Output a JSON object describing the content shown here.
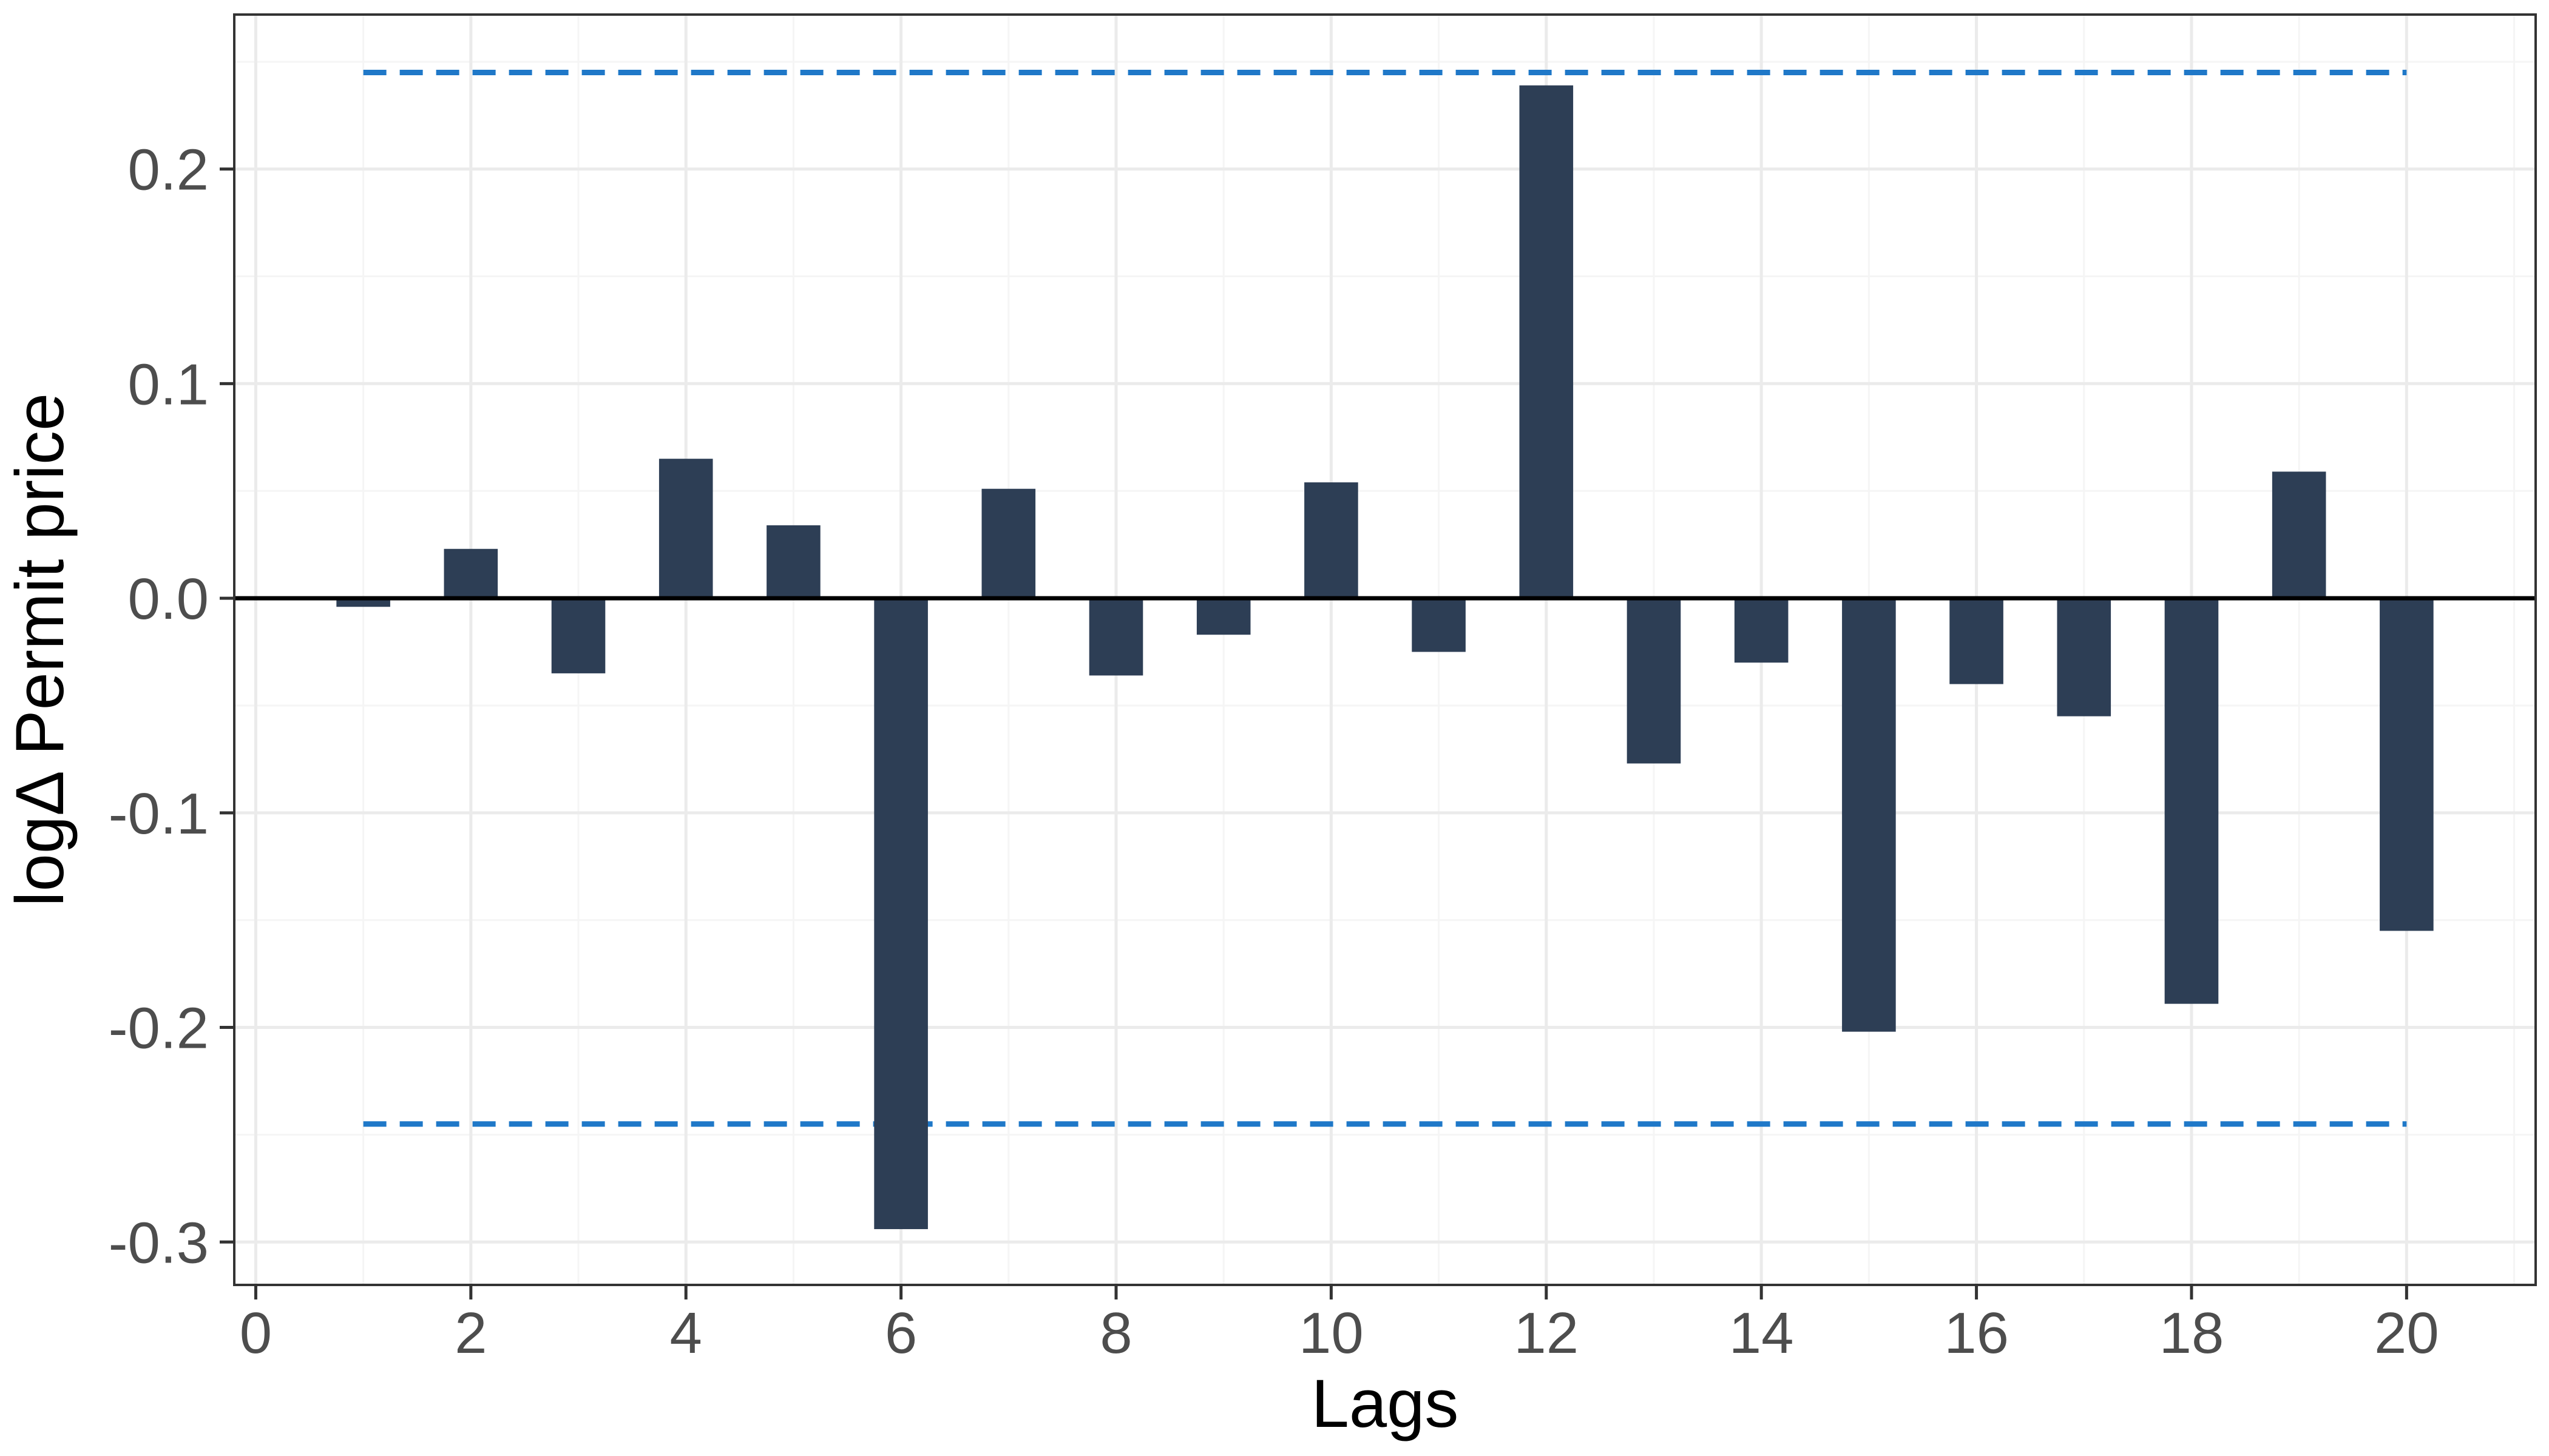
{
  "chart_data": {
    "type": "bar",
    "xlabel": "Lags",
    "ylabel": "logΔ Permit price",
    "x": [
      1,
      2,
      3,
      4,
      5,
      6,
      7,
      8,
      9,
      10,
      11,
      12,
      13,
      14,
      15,
      16,
      17,
      18,
      19,
      20
    ],
    "values": [
      -0.004,
      0.023,
      -0.035,
      0.065,
      0.034,
      -0.294,
      0.051,
      -0.036,
      -0.017,
      0.054,
      -0.025,
      0.239,
      -0.077,
      -0.03,
      -0.202,
      -0.04,
      -0.055,
      -0.189,
      0.059,
      -0.155
    ],
    "xlim": [
      -0.2,
      21.2
    ],
    "ylim": [
      -0.32,
      0.272
    ],
    "xticks": [
      0,
      2,
      4,
      6,
      8,
      10,
      12,
      14,
      16,
      18,
      20
    ],
    "xtick_labels": [
      "0",
      "2",
      "4",
      "6",
      "8",
      "10",
      "12",
      "14",
      "16",
      "18",
      "20"
    ],
    "yticks": [
      -0.3,
      -0.2,
      -0.1,
      0.0,
      0.1,
      0.2
    ],
    "ytick_labels": [
      "-0.3",
      "-0.2",
      "-0.1",
      "0.0",
      "0.1",
      "0.2"
    ],
    "confidence_bound": 0.245,
    "confidence_xrange": [
      1,
      20
    ],
    "grid": true,
    "colors": {
      "bar": "#2d3e55",
      "confidence": "#1f78c8",
      "zero_line": "#000000",
      "grid_major": "#ebebeb",
      "grid_minor": "#f5f5f5",
      "panel_border": "#333333"
    }
  }
}
